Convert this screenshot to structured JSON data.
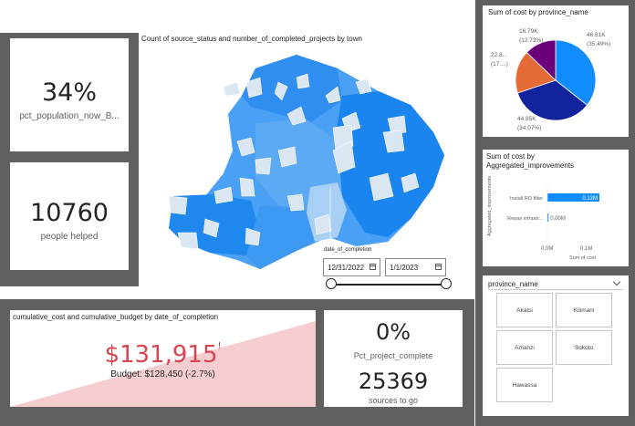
{
  "kpis": {
    "pct_population": {
      "value": "34%",
      "label": "pct_population_now_B..."
    },
    "people_helped": {
      "value": "10760",
      "label": "people helped"
    },
    "pct_project": {
      "value": "0%",
      "label": "Pct_project_complete"
    },
    "sources_to_go": {
      "value": "25369",
      "label": "sources to go"
    }
  },
  "map": {
    "title": "Count of source_status and number_of_completed_projects by town"
  },
  "date_slicer": {
    "label": "date_of_completion",
    "start": "12/31/2022",
    "end": "1/1/2023"
  },
  "gauge": {
    "title": "cumulative_cost and cumulative_budget by date_of_completion",
    "value": "$131,915",
    "exclam": "!",
    "budget_text": "Budget: $128,450 (-2.7%)"
  },
  "colors": {
    "accent": "#118dff",
    "navy": "#12239e",
    "orange": "#e66c37",
    "purple": "#6b007b",
    "kpi_red": "#d64550",
    "gauge_fill": "#f5ccd0",
    "panel": "#606060"
  },
  "chart_data": [
    {
      "type": "pie",
      "title": "Sum of cost by province_name",
      "slices": [
        {
          "value": 46810,
          "label": "46.81K",
          "pct": "(35.49%)",
          "color": "#118dff"
        },
        {
          "value": 44950,
          "label": "44.95K",
          "pct": "(34.07%)",
          "color": "#12239e"
        },
        {
          "value": 22800,
          "label": "22.8...",
          "pct": "(17....)",
          "color": "#e66c37"
        },
        {
          "value": 16790,
          "label": "16.79K",
          "pct": "(12.73%)",
          "color": "#6b007b"
        }
      ]
    },
    {
      "type": "bar",
      "title": "Sum of cost by Aggregated_improvements",
      "ylabel": "Aggregated_improvements",
      "xlabel": "Sum of cost",
      "categories": [
        "Install RO filter",
        "Repair infrastr..."
      ],
      "values": [
        0.13,
        0.0
      ],
      "data_labels": [
        "0.13M",
        "0.00M"
      ],
      "xlim": [
        0,
        1
      ],
      "xticks": [
        "0.0M",
        "0.1M"
      ]
    }
  ],
  "province_slicer": {
    "title": "province_name",
    "chevron": "chevron-down-icon",
    "items": [
      "Akatsi",
      "Kilimani",
      "Amanzi",
      "Sokoto",
      "Hawassa"
    ]
  }
}
